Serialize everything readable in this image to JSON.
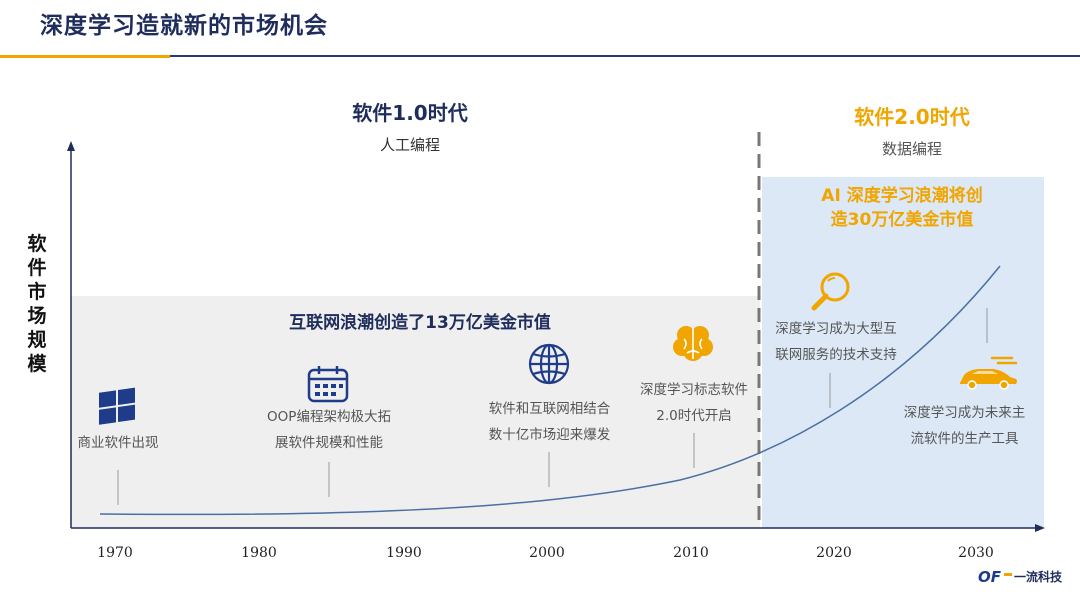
{
  "title": "深度学习造就新的市场机会",
  "y_axis_label": "软件市场规模",
  "era1": {
    "title": "软件1.0时代",
    "subtitle": "人工编程"
  },
  "era2": {
    "title": "软件2.0时代",
    "subtitle": "数据编程"
  },
  "highlights": {
    "internet": "互联网浪潮创造了13万亿美金市值",
    "ai_line1": "AI 深度学习浪潮将创",
    "ai_line2": "造30万亿美金市值"
  },
  "events": [
    {
      "lines": [
        "商业软件出现"
      ],
      "icon": "windows-logo-icon"
    },
    {
      "lines": [
        "OOP编程架构极大拓",
        "展软件规模和性能"
      ],
      "icon": "calendar-icon"
    },
    {
      "lines": [
        "软件和互联网相结合",
        "数十亿市场迎来爆发"
      ],
      "icon": "globe-icon"
    },
    {
      "lines": [
        "深度学习标志软件",
        "2.0时代开启"
      ],
      "icon": "brain-icon"
    },
    {
      "lines": [
        "深度学习成为大型互",
        "联网服务的技术支持"
      ],
      "icon": "search-icon"
    },
    {
      "lines": [
        "深度学习成为未来主",
        "流软件的生产工具"
      ],
      "icon": "car-icon"
    }
  ],
  "x_ticks": [
    "1970",
    "1980",
    "1990",
    "2000",
    "2010",
    "2020",
    "2030"
  ],
  "brand": "一流科技",
  "colors": {
    "navy": "#1f2d5c",
    "accent": "#f0a500",
    "curve": "#4a6fa5",
    "grey_zone": "#efefef",
    "blue_zone": "#dce8f5"
  }
}
